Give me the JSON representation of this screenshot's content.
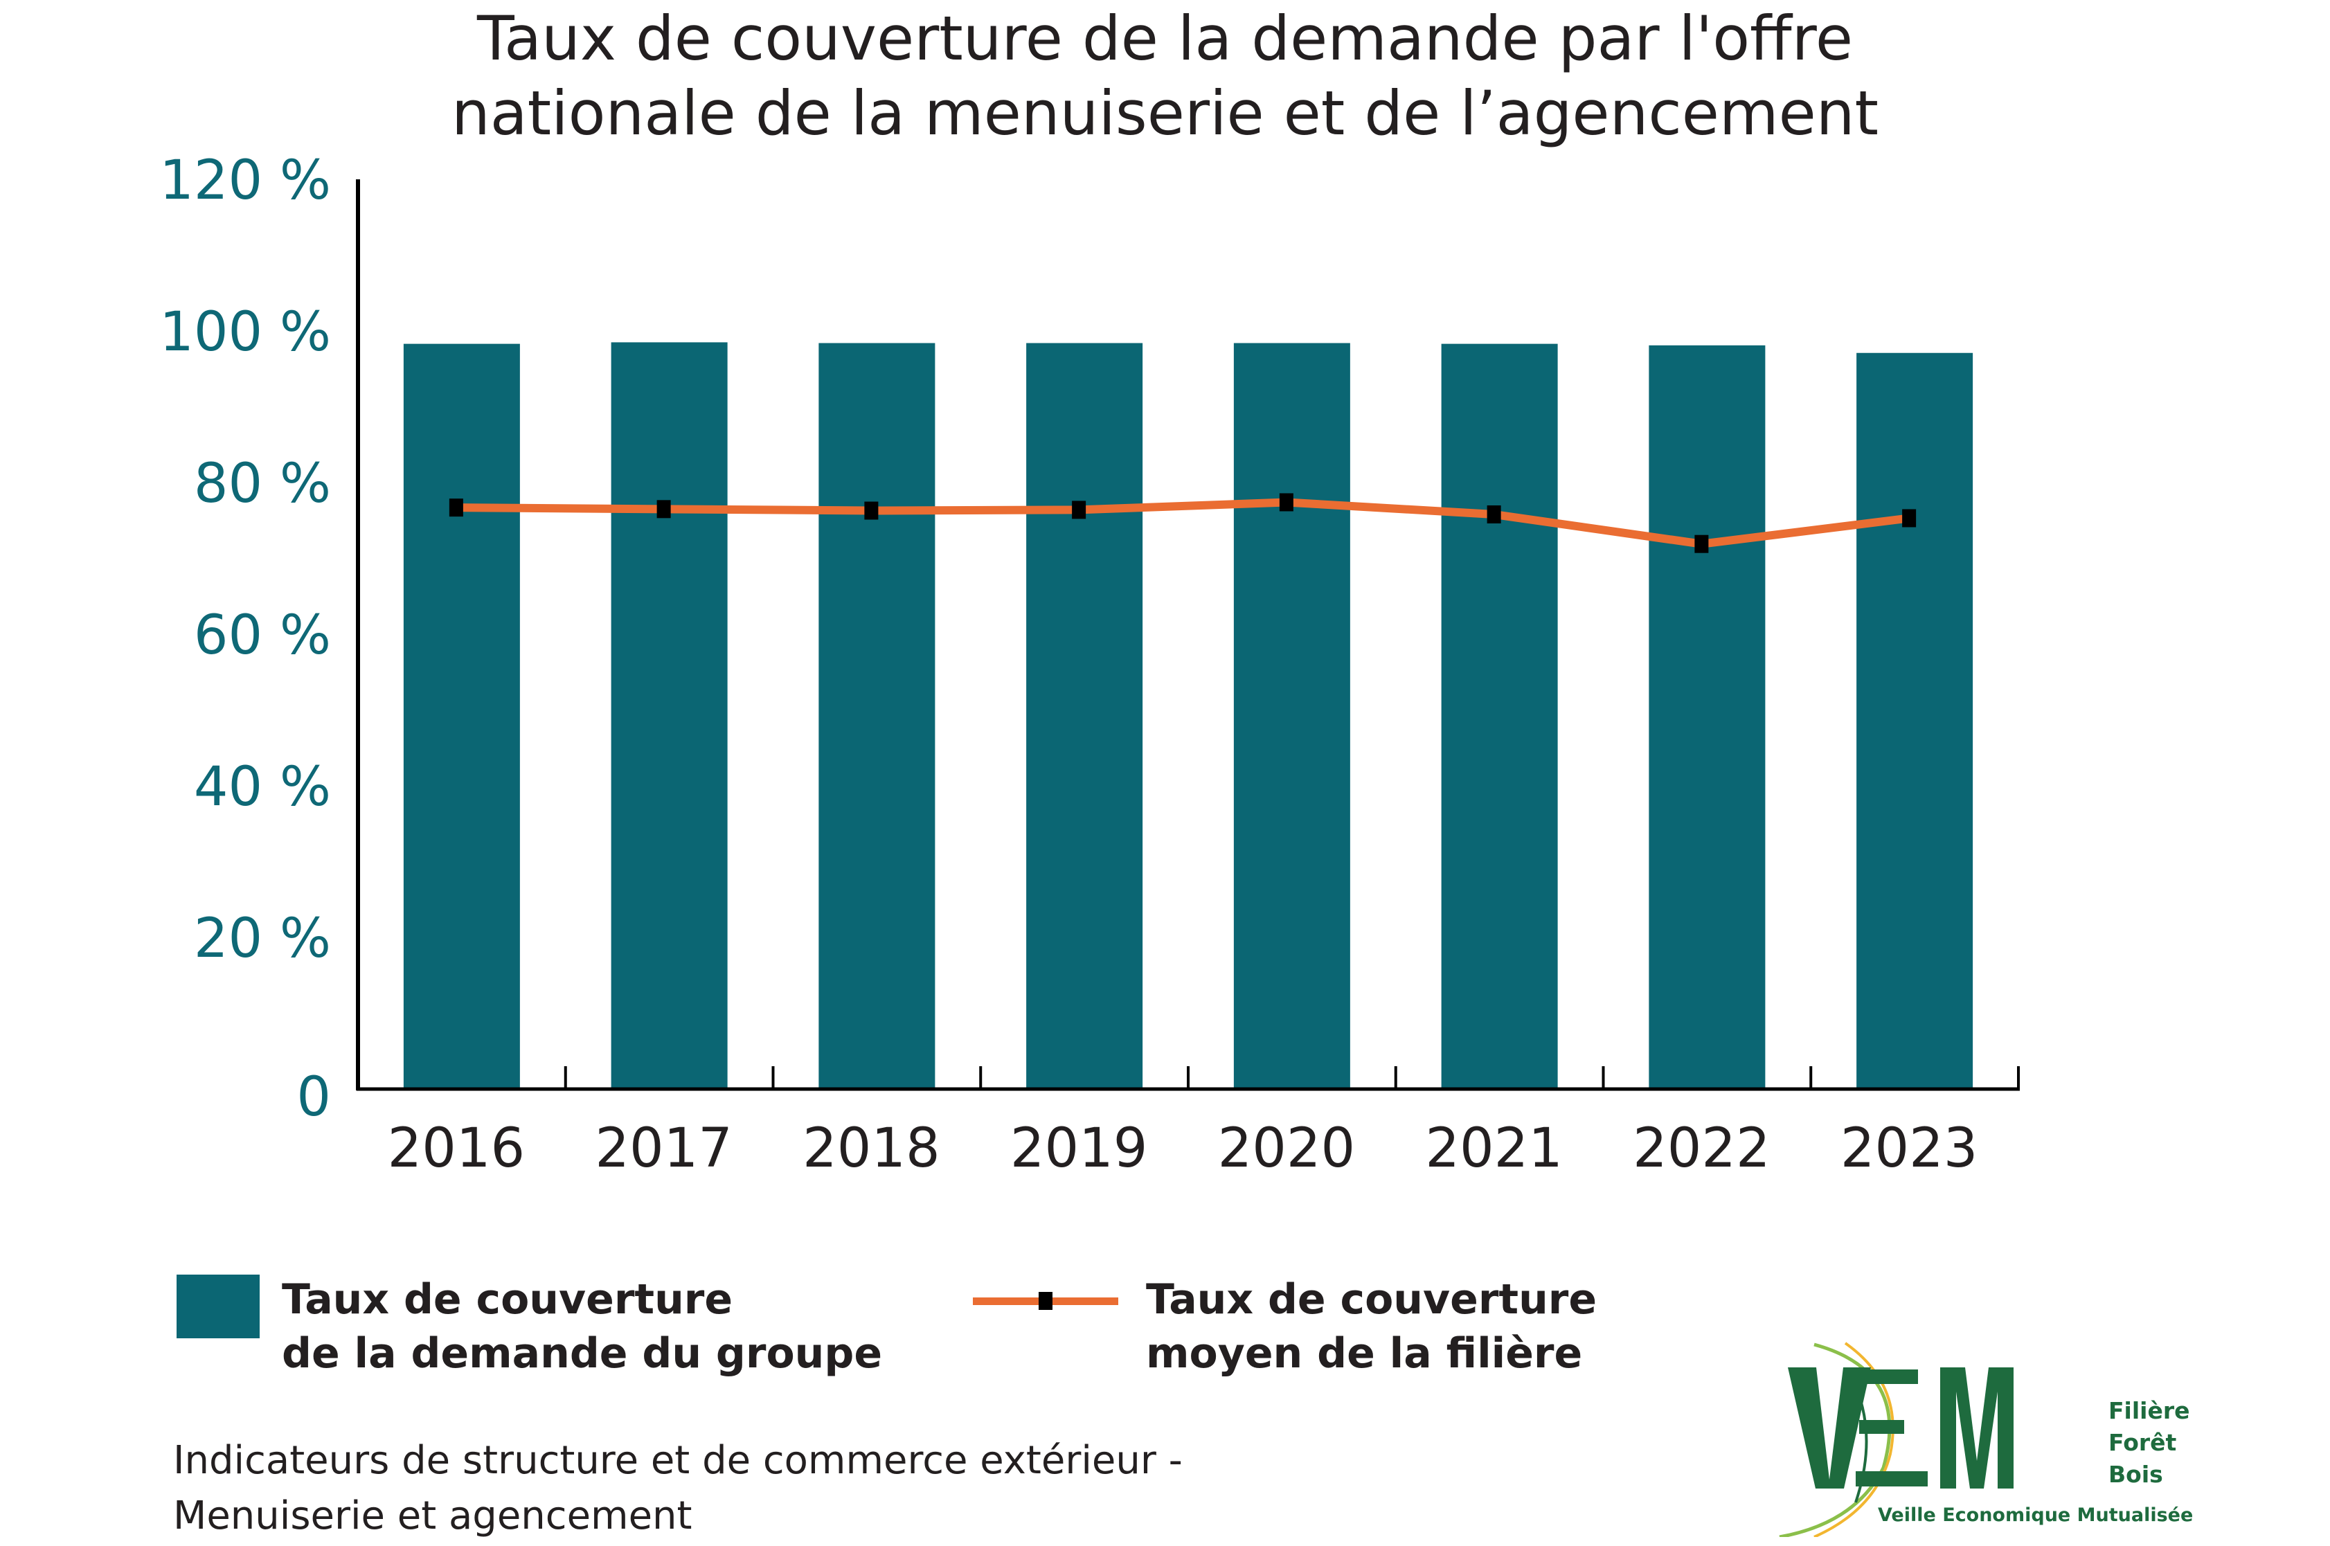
{
  "title_lines": [
    "Taux de couverture de la demande par l'offre",
    "nationale de la menuiserie et de l’agencement"
  ],
  "legend": {
    "bar_label_lines": [
      "Taux de couverture",
      "de la demande du groupe"
    ],
    "line_label_lines": [
      "Taux de couverture",
      "moyen de la filière"
    ]
  },
  "source_lines": [
    "Indicateurs de structure et de commerce extérieur -",
    "Menuiserie et agencement"
  ],
  "logo": {
    "letters": "VEM",
    "side_lines": [
      "Filière",
      "Forêt",
      "Bois"
    ],
    "tagline": "Veille Economique Mutualisée"
  },
  "colors": {
    "bar": "#0b6673",
    "line": "#ea6d32",
    "marker": "#000000",
    "ytick": "#0e6876",
    "logo_green": "#1e6b3e",
    "logo_light_green": "#8bbf4a",
    "logo_yellow": "#f2b630"
  },
  "chart_data": {
    "type": "bar",
    "title": "Taux de couverture de la demande par l'offre nationale de la menuiserie et de l’agencement",
    "xlabel": "",
    "ylabel": "",
    "categories": [
      "2016",
      "2017",
      "2018",
      "2019",
      "2020",
      "2021",
      "2022",
      "2023"
    ],
    "ylim": [
      0,
      120
    ],
    "yticks": [
      0,
      20,
      40,
      60,
      80,
      100,
      120
    ],
    "ytick_labels": [
      "0",
      "20 %",
      "40 %",
      "60 %",
      "80 %",
      "100 %",
      "120 %"
    ],
    "grid": false,
    "legend_position": "bottom",
    "series": [
      {
        "name": "Taux de couverture de la demande du groupe",
        "type": "bar",
        "values": [
          98.3,
          98.5,
          98.4,
          98.4,
          98.4,
          98.3,
          98.1,
          97.1
        ]
      },
      {
        "name": "Taux de couverture moyen de la filière",
        "type": "line",
        "marker": "square",
        "values": [
          76.7,
          76.5,
          76.3,
          76.4,
          77.4,
          75.8,
          71.9,
          75.3
        ]
      }
    ]
  }
}
